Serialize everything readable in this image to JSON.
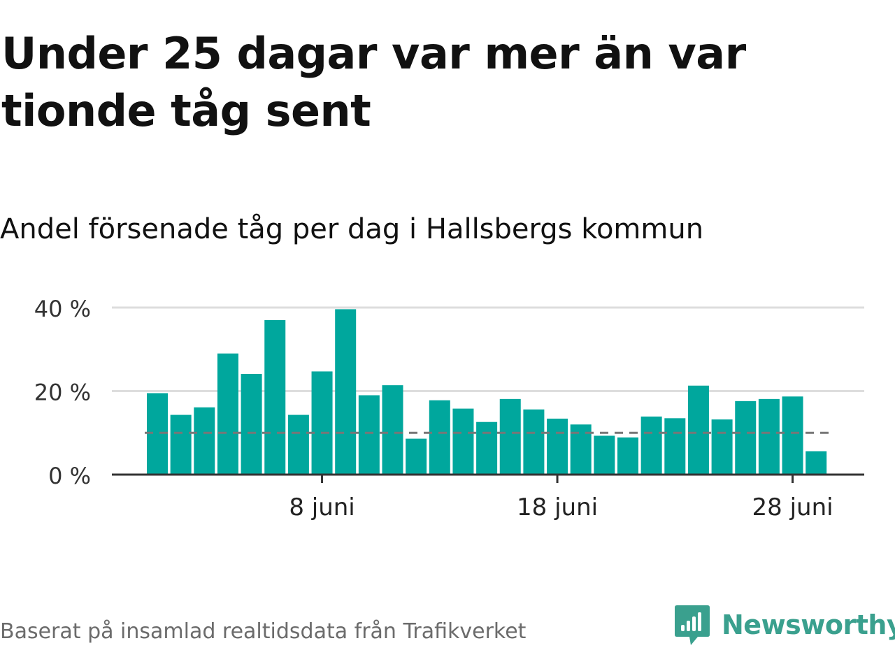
{
  "header": {
    "title": "Under 25 dagar var mer än var tionde tåg sent",
    "subtitle": "Andel försenade tåg per dag i Hallsbergs kommun"
  },
  "footer": {
    "source": "Baserat på insamlad realtidsdata från Trafikverket",
    "brand": "Newsworthy",
    "brand_icon": "bar-chart-speech-bubble-icon"
  },
  "colors": {
    "bar": "#00a79d",
    "reference_line": "#777777",
    "grid": "#dddddd",
    "axis": "#333333",
    "brand": "#3aa08e"
  },
  "chart_data": {
    "type": "bar",
    "categories": [
      "1 juni",
      "2 juni",
      "3 juni",
      "4 juni",
      "5 juni",
      "6 juni",
      "7 juni",
      "8 juni",
      "9 juni",
      "10 juni",
      "11 juni",
      "12 juni",
      "13 juni",
      "14 juni",
      "15 juni",
      "16 juni",
      "17 juni",
      "18 juni",
      "19 juni",
      "20 juni",
      "21 juni",
      "22 juni",
      "23 juni",
      "24 juni",
      "25 juni",
      "26 juni",
      "27 juni",
      "28 juni",
      "29 juni"
    ],
    "values": [
      19.5,
      14.3,
      16.1,
      29.0,
      24.1,
      37.0,
      14.3,
      24.7,
      39.6,
      19.0,
      21.4,
      8.6,
      17.8,
      15.8,
      12.6,
      18.1,
      15.6,
      13.4,
      12.0,
      9.3,
      8.9,
      13.9,
      13.5,
      21.3,
      13.2,
      17.6,
      18.1,
      18.7,
      5.6
    ],
    "reference_line": 10,
    "ylim": [
      0,
      40
    ],
    "y_ticks": [
      {
        "value": 0,
        "label": "0 %"
      },
      {
        "value": 20,
        "label": "20 %"
      },
      {
        "value": 40,
        "label": "40 %"
      }
    ],
    "x_ticks": [
      {
        "index": 7,
        "label": "8 juni"
      },
      {
        "index": 17,
        "label": "18 juni"
      },
      {
        "index": 27,
        "label": "28 juni"
      }
    ],
    "xlabel": "",
    "ylabel": "",
    "grid": true,
    "legend": "none"
  }
}
